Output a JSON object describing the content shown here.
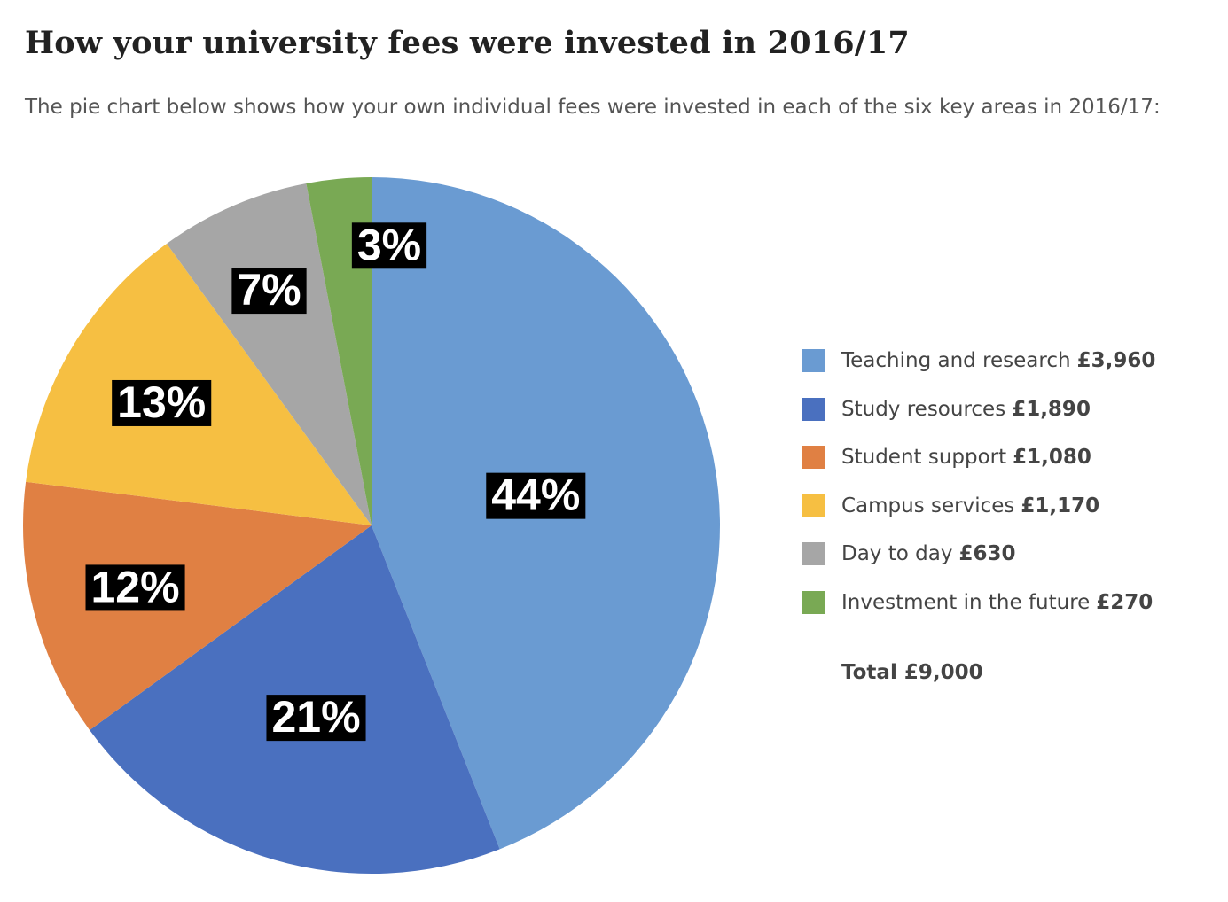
{
  "chart_data": {
    "type": "pie",
    "title": "How your university fees were invested in 2016/17",
    "subtitle": "The pie chart below shows how your own individual fees were invested in each of the six key areas in 2016/17:",
    "slices": [
      {
        "label": "Teaching and research",
        "amount": "£3,960",
        "value": 3960,
        "percent": "44%",
        "color": "#6a9bd2"
      },
      {
        "label": "Study resources",
        "amount": "£1,890",
        "value": 1890,
        "percent": "21%",
        "color": "#4a70bf"
      },
      {
        "label": "Student support",
        "amount": "£1,080",
        "value": 1080,
        "percent": "12%",
        "color": "#e08043"
      },
      {
        "label": "Campus services",
        "amount": "£1,170",
        "value": 1170,
        "percent": "13%",
        "color": "#f6bf42"
      },
      {
        "label": "Day to day",
        "amount": "£630",
        "value": 630,
        "percent": "7%",
        "color": "#a6a6a6"
      },
      {
        "label": "Investment in the future",
        "amount": "£270",
        "value": 270,
        "percent": "3%",
        "color": "#79a954"
      }
    ],
    "total": "Total £9,000",
    "legend_position": "right"
  }
}
